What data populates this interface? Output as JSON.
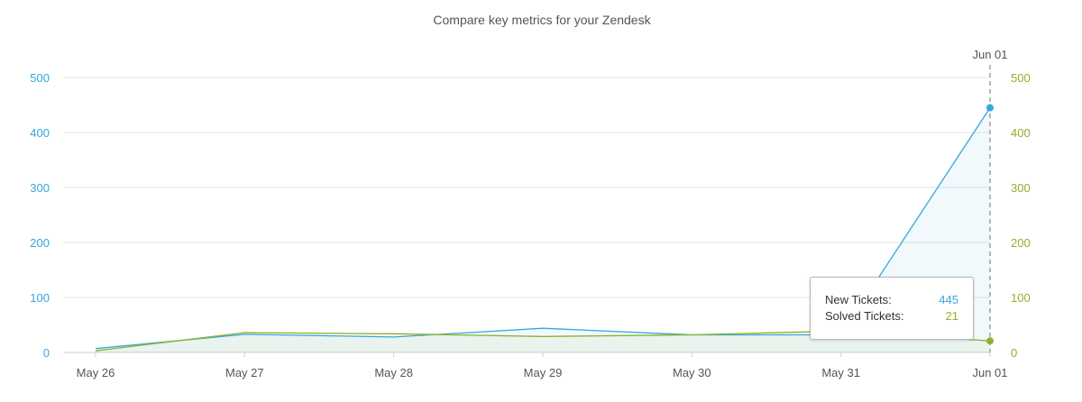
{
  "title": "Compare key metrics for your Zendesk",
  "colors": {
    "new_tickets": "#35a8dc",
    "solved_tickets": "#8fb02b",
    "grid": "#e5e5e5",
    "crosshair": "#888888"
  },
  "hover": {
    "date_label": "Jun 01",
    "index": 6
  },
  "tooltip": {
    "rows": [
      {
        "label": "New Tickets:",
        "value": "445"
      },
      {
        "label": "Solved Tickets:",
        "value": "21"
      }
    ]
  },
  "chart_data": {
    "type": "line",
    "title": "Compare key metrics for your Zendesk",
    "categories": [
      "May 26",
      "May 27",
      "May 28",
      "May 29",
      "May 30",
      "May 31",
      "Jun 01"
    ],
    "y_left": {
      "min": 0,
      "max": 500,
      "ticks": [
        0,
        100,
        200,
        300,
        400,
        500
      ]
    },
    "y_right": {
      "min": 0,
      "max": 500,
      "ticks": [
        0,
        100,
        200,
        300,
        400,
        500
      ]
    },
    "grid": true,
    "legend": "none",
    "series": [
      {
        "name": "New Tickets",
        "axis": "left",
        "values": [
          7,
          33,
          28,
          44,
          32,
          32,
          445
        ]
      },
      {
        "name": "Solved Tickets",
        "axis": "right",
        "values": [
          3,
          36,
          34,
          29,
          32,
          39,
          21
        ]
      }
    ]
  }
}
